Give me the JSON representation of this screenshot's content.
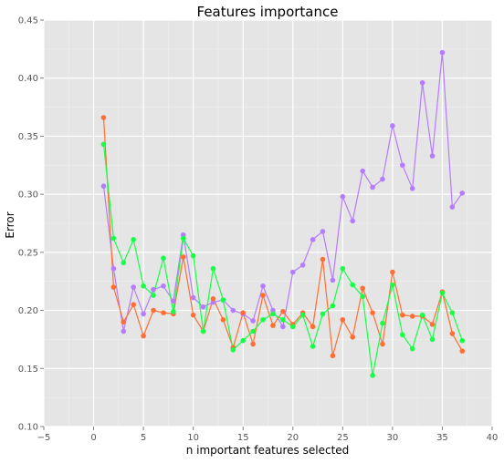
{
  "chart_data": {
    "type": "line",
    "title": "Features importance",
    "xlabel": "n important features selected",
    "ylabel": "Error",
    "xlim": [
      -5,
      40
    ],
    "ylim": [
      0.1,
      0.45
    ],
    "xticks": [
      -5,
      0,
      5,
      10,
      15,
      20,
      25,
      30,
      35,
      40
    ],
    "xtick_labels": [
      "−5",
      "0",
      "5",
      "10",
      "15",
      "20",
      "25",
      "30",
      "35",
      "40"
    ],
    "yticks": [
      0.1,
      0.15,
      0.2,
      0.25,
      0.3,
      0.35,
      0.4,
      0.45
    ],
    "ytick_labels": [
      "0.10",
      "0.15",
      "0.20",
      "0.25",
      "0.30",
      "0.35",
      "0.40",
      "0.45"
    ],
    "grid": true,
    "legend": "none",
    "background": "#e5e5e5",
    "x": [
      1,
      2,
      3,
      4,
      5,
      6,
      7,
      8,
      9,
      10,
      11,
      12,
      13,
      14,
      15,
      16,
      17,
      18,
      19,
      20,
      21,
      22,
      23,
      24,
      25,
      26,
      27,
      28,
      29,
      30,
      31,
      32,
      33,
      34,
      35,
      36,
      37
    ],
    "series": [
      {
        "color": "#b67cff",
        "values": [
          0.307,
          0.236,
          0.182,
          0.22,
          0.197,
          0.218,
          0.221,
          0.208,
          0.265,
          0.211,
          0.203,
          0.207,
          0.209,
          0.2,
          0.197,
          0.191,
          0.221,
          0.2,
          0.186,
          0.233,
          0.239,
          0.261,
          0.268,
          0.226,
          0.298,
          0.277,
          0.32,
          0.306,
          0.313,
          0.359,
          0.325,
          0.305,
          0.396,
          0.333,
          0.422,
          0.289,
          0.301
        ]
      },
      {
        "color": "#ff6f33",
        "values": [
          0.366,
          0.22,
          0.19,
          0.205,
          0.178,
          0.2,
          0.198,
          0.197,
          0.246,
          0.196,
          0.182,
          0.21,
          0.192,
          0.168,
          0.198,
          0.171,
          0.213,
          0.187,
          0.199,
          0.188,
          0.198,
          0.186,
          0.244,
          0.161,
          0.192,
          0.177,
          0.219,
          0.198,
          0.171,
          0.233,
          0.196,
          0.195,
          0.195,
          0.188,
          0.216,
          0.18,
          0.165
        ]
      },
      {
        "color": "#17ff46",
        "values": [
          0.343,
          0.262,
          0.241,
          0.261,
          0.221,
          0.213,
          0.245,
          0.199,
          0.262,
          0.247,
          0.182,
          0.236,
          0.209,
          0.166,
          0.174,
          0.182,
          0.192,
          0.197,
          0.192,
          0.186,
          0.196,
          0.169,
          0.197,
          0.204,
          0.236,
          0.222,
          0.212,
          0.144,
          0.189,
          0.222,
          0.179,
          0.167,
          0.196,
          0.175,
          0.215,
          0.198,
          0.174
        ]
      }
    ]
  }
}
